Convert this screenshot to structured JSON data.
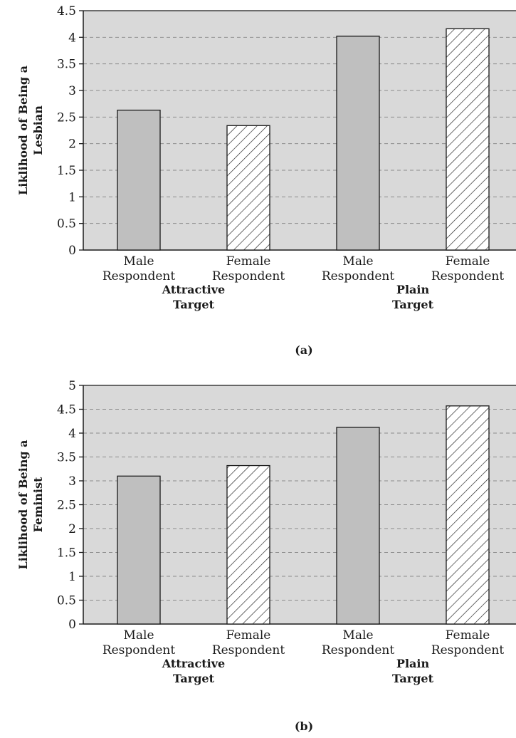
{
  "chart_data": [
    {
      "type": "bar",
      "panel_label": "(a)",
      "ylabel": [
        "Liklihood of Being a",
        "Lesbian"
      ],
      "ylim": [
        0,
        4.5
      ],
      "yticks": [
        "0",
        "0.5",
        "1",
        "1.5",
        "2",
        "2.5",
        "3",
        "3.5",
        "4",
        "4.5"
      ],
      "grid": true,
      "groups": [
        {
          "label": [
            "Attractive",
            "Target"
          ],
          "categories": [
            [
              "Male",
              "Respondent"
            ],
            [
              "Female",
              "Respondent"
            ]
          ]
        },
        {
          "label": [
            "Plain",
            "Target"
          ],
          "categories": [
            [
              "Male",
              "Respondent"
            ],
            [
              "Female",
              "Respondent"
            ]
          ]
        }
      ],
      "values": [
        2.63,
        2.34,
        4.02,
        4.16
      ],
      "bar_styles": [
        "solid",
        "hatched",
        "solid",
        "hatched"
      ]
    },
    {
      "type": "bar",
      "panel_label": "(b)",
      "ylabel": [
        "Liklihood of Being a",
        "Feminist"
      ],
      "ylim": [
        0,
        5
      ],
      "yticks": [
        "0",
        "0.5",
        "1",
        "1.5",
        "2",
        "2.5",
        "3",
        "3.5",
        "4",
        "4.5",
        "5"
      ],
      "grid": true,
      "groups": [
        {
          "label": [
            "Attractive",
            "Target"
          ],
          "categories": [
            [
              "Male",
              "Respondent"
            ],
            [
              "Female",
              "Respondent"
            ]
          ]
        },
        {
          "label": [
            "Plain",
            "Target"
          ],
          "categories": [
            [
              "Male",
              "Respondent"
            ],
            [
              "Female",
              "Respondent"
            ]
          ]
        }
      ],
      "values": [
        3.1,
        3.32,
        4.12,
        4.57
      ],
      "bar_styles": [
        "solid",
        "hatched",
        "solid",
        "hatched"
      ]
    }
  ],
  "colors": {
    "plot_background": "#d9d9d9",
    "bar_fill": "#bfbfbf",
    "hatch_background": "#ffffff",
    "bar_stroke": "#1a1a1a",
    "grid": "#8c8c8c"
  }
}
